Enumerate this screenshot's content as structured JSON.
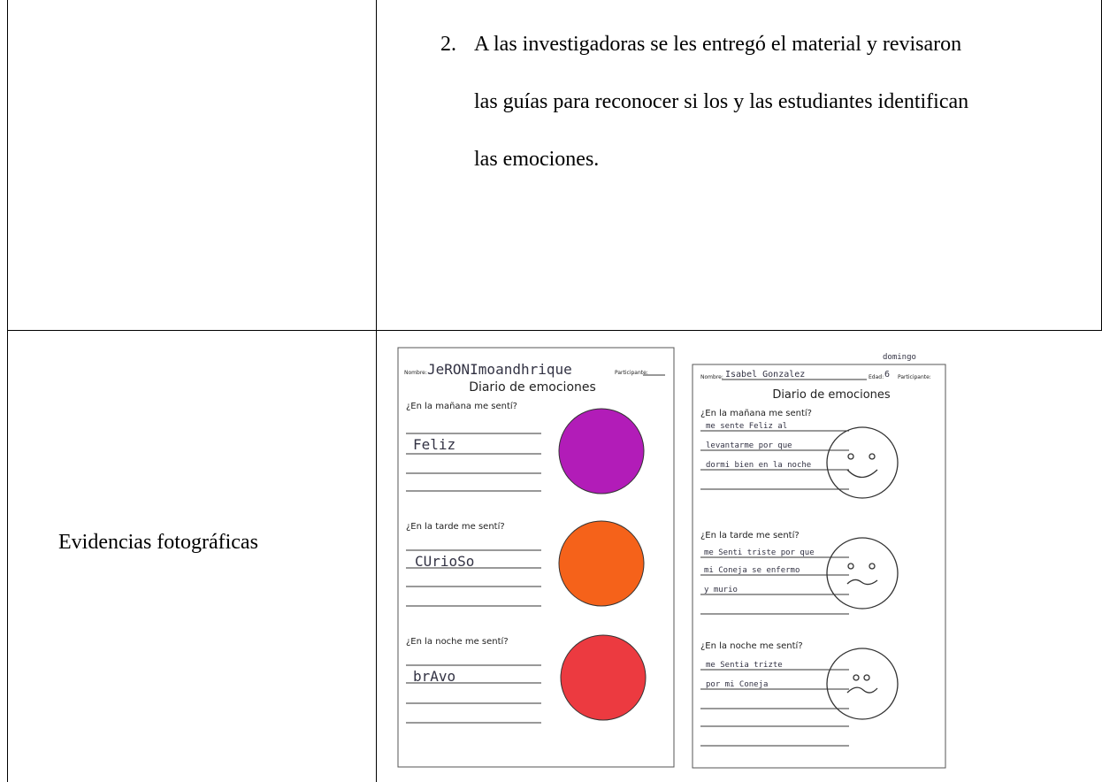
{
  "list_item": {
    "number": "2.",
    "text": "A las investigadoras se les entregó el material y revisaron las guías para reconocer si los y las estudiantes identifican las emociones."
  },
  "row_label": "Evidencias fotográficas",
  "worksheets": [
    {
      "name_label": "Nombre:",
      "name": "JeRONImoandhrique",
      "participant_label": "Participante:",
      "title": "Diario de emociones",
      "morning_q": "¿En la mañana me sentí?",
      "morning_a": [
        "Feliz"
      ],
      "afternoon_q": "¿En la tarde me sentí?",
      "afternoon_a": [
        "CUrioSo"
      ],
      "night_q": "¿En la noche me sentí?",
      "night_a": [
        "brAvo"
      ]
    },
    {
      "day": "domingo",
      "name_label": "Nombre:",
      "name": "Isabel Gonzalez",
      "age_label": "Edad:",
      "age": "6",
      "participant_label": "Participante:",
      "title": "Diario de emociones",
      "morning_q": "¿En la mañana me sentí?",
      "morning_a": [
        "me sente Feliz al",
        "levantarme por que",
        "dormi bien en la noche"
      ],
      "afternoon_q": "¿En la tarde me sentí?",
      "afternoon_a": [
        "me Senti triste por que",
        "mi Coneja se enfermo",
        "y murio"
      ],
      "night_q": "¿En la noche me sentí?",
      "night_a": [
        "me Sentia trizte",
        "por mi Coneja"
      ]
    }
  ]
}
